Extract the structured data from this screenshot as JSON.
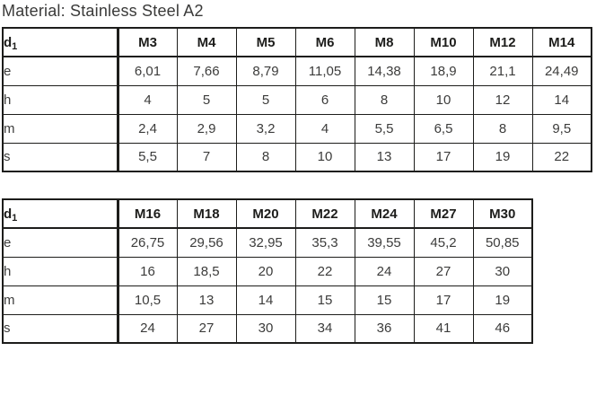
{
  "title": "Material: Stainless Steel A2",
  "colors": {
    "border": "#1d1d1b",
    "header_text": "#1d1d1b",
    "body_text": "#3c3c3b",
    "background": "#ffffff",
    "title_text": "#3a3a39"
  },
  "tables": [
    {
      "name": "sizes-m3-m14",
      "header": {
        "first": {
          "base": "d",
          "sub": "1"
        },
        "columns": [
          "M3",
          "M4",
          "M5",
          "M6",
          "M8",
          "M10",
          "M12",
          "M14"
        ]
      },
      "rows": [
        {
          "label": "e",
          "values": [
            "6,01",
            "7,66",
            "8,79",
            "11,05",
            "14,38",
            "18,9",
            "21,1",
            "24,49"
          ]
        },
        {
          "label": "h",
          "values": [
            "4",
            "5",
            "5",
            "6",
            "8",
            "10",
            "12",
            "14"
          ]
        },
        {
          "label": "m",
          "values": [
            "2,4",
            "2,9",
            "3,2",
            "4",
            "5,5",
            "6,5",
            "8",
            "9,5"
          ]
        },
        {
          "label": "s",
          "values": [
            "5,5",
            "7",
            "8",
            "10",
            "13",
            "17",
            "19",
            "22"
          ]
        }
      ]
    },
    {
      "name": "sizes-m16-m30",
      "header": {
        "first": {
          "base": "d",
          "sub": "1"
        },
        "columns": [
          "M16",
          "M18",
          "M20",
          "M22",
          "M24",
          "M27",
          "M30"
        ]
      },
      "rows": [
        {
          "label": "e",
          "values": [
            "26,75",
            "29,56",
            "32,95",
            "35,3",
            "39,55",
            "45,2",
            "50,85"
          ]
        },
        {
          "label": "h",
          "values": [
            "16",
            "18,5",
            "20",
            "22",
            "24",
            "27",
            "30"
          ]
        },
        {
          "label": "m",
          "values": [
            "10,5",
            "13",
            "14",
            "15",
            "15",
            "17",
            "19"
          ]
        },
        {
          "label": "s",
          "values": [
            "24",
            "27",
            "30",
            "34",
            "36",
            "41",
            "46"
          ]
        }
      ]
    }
  ]
}
